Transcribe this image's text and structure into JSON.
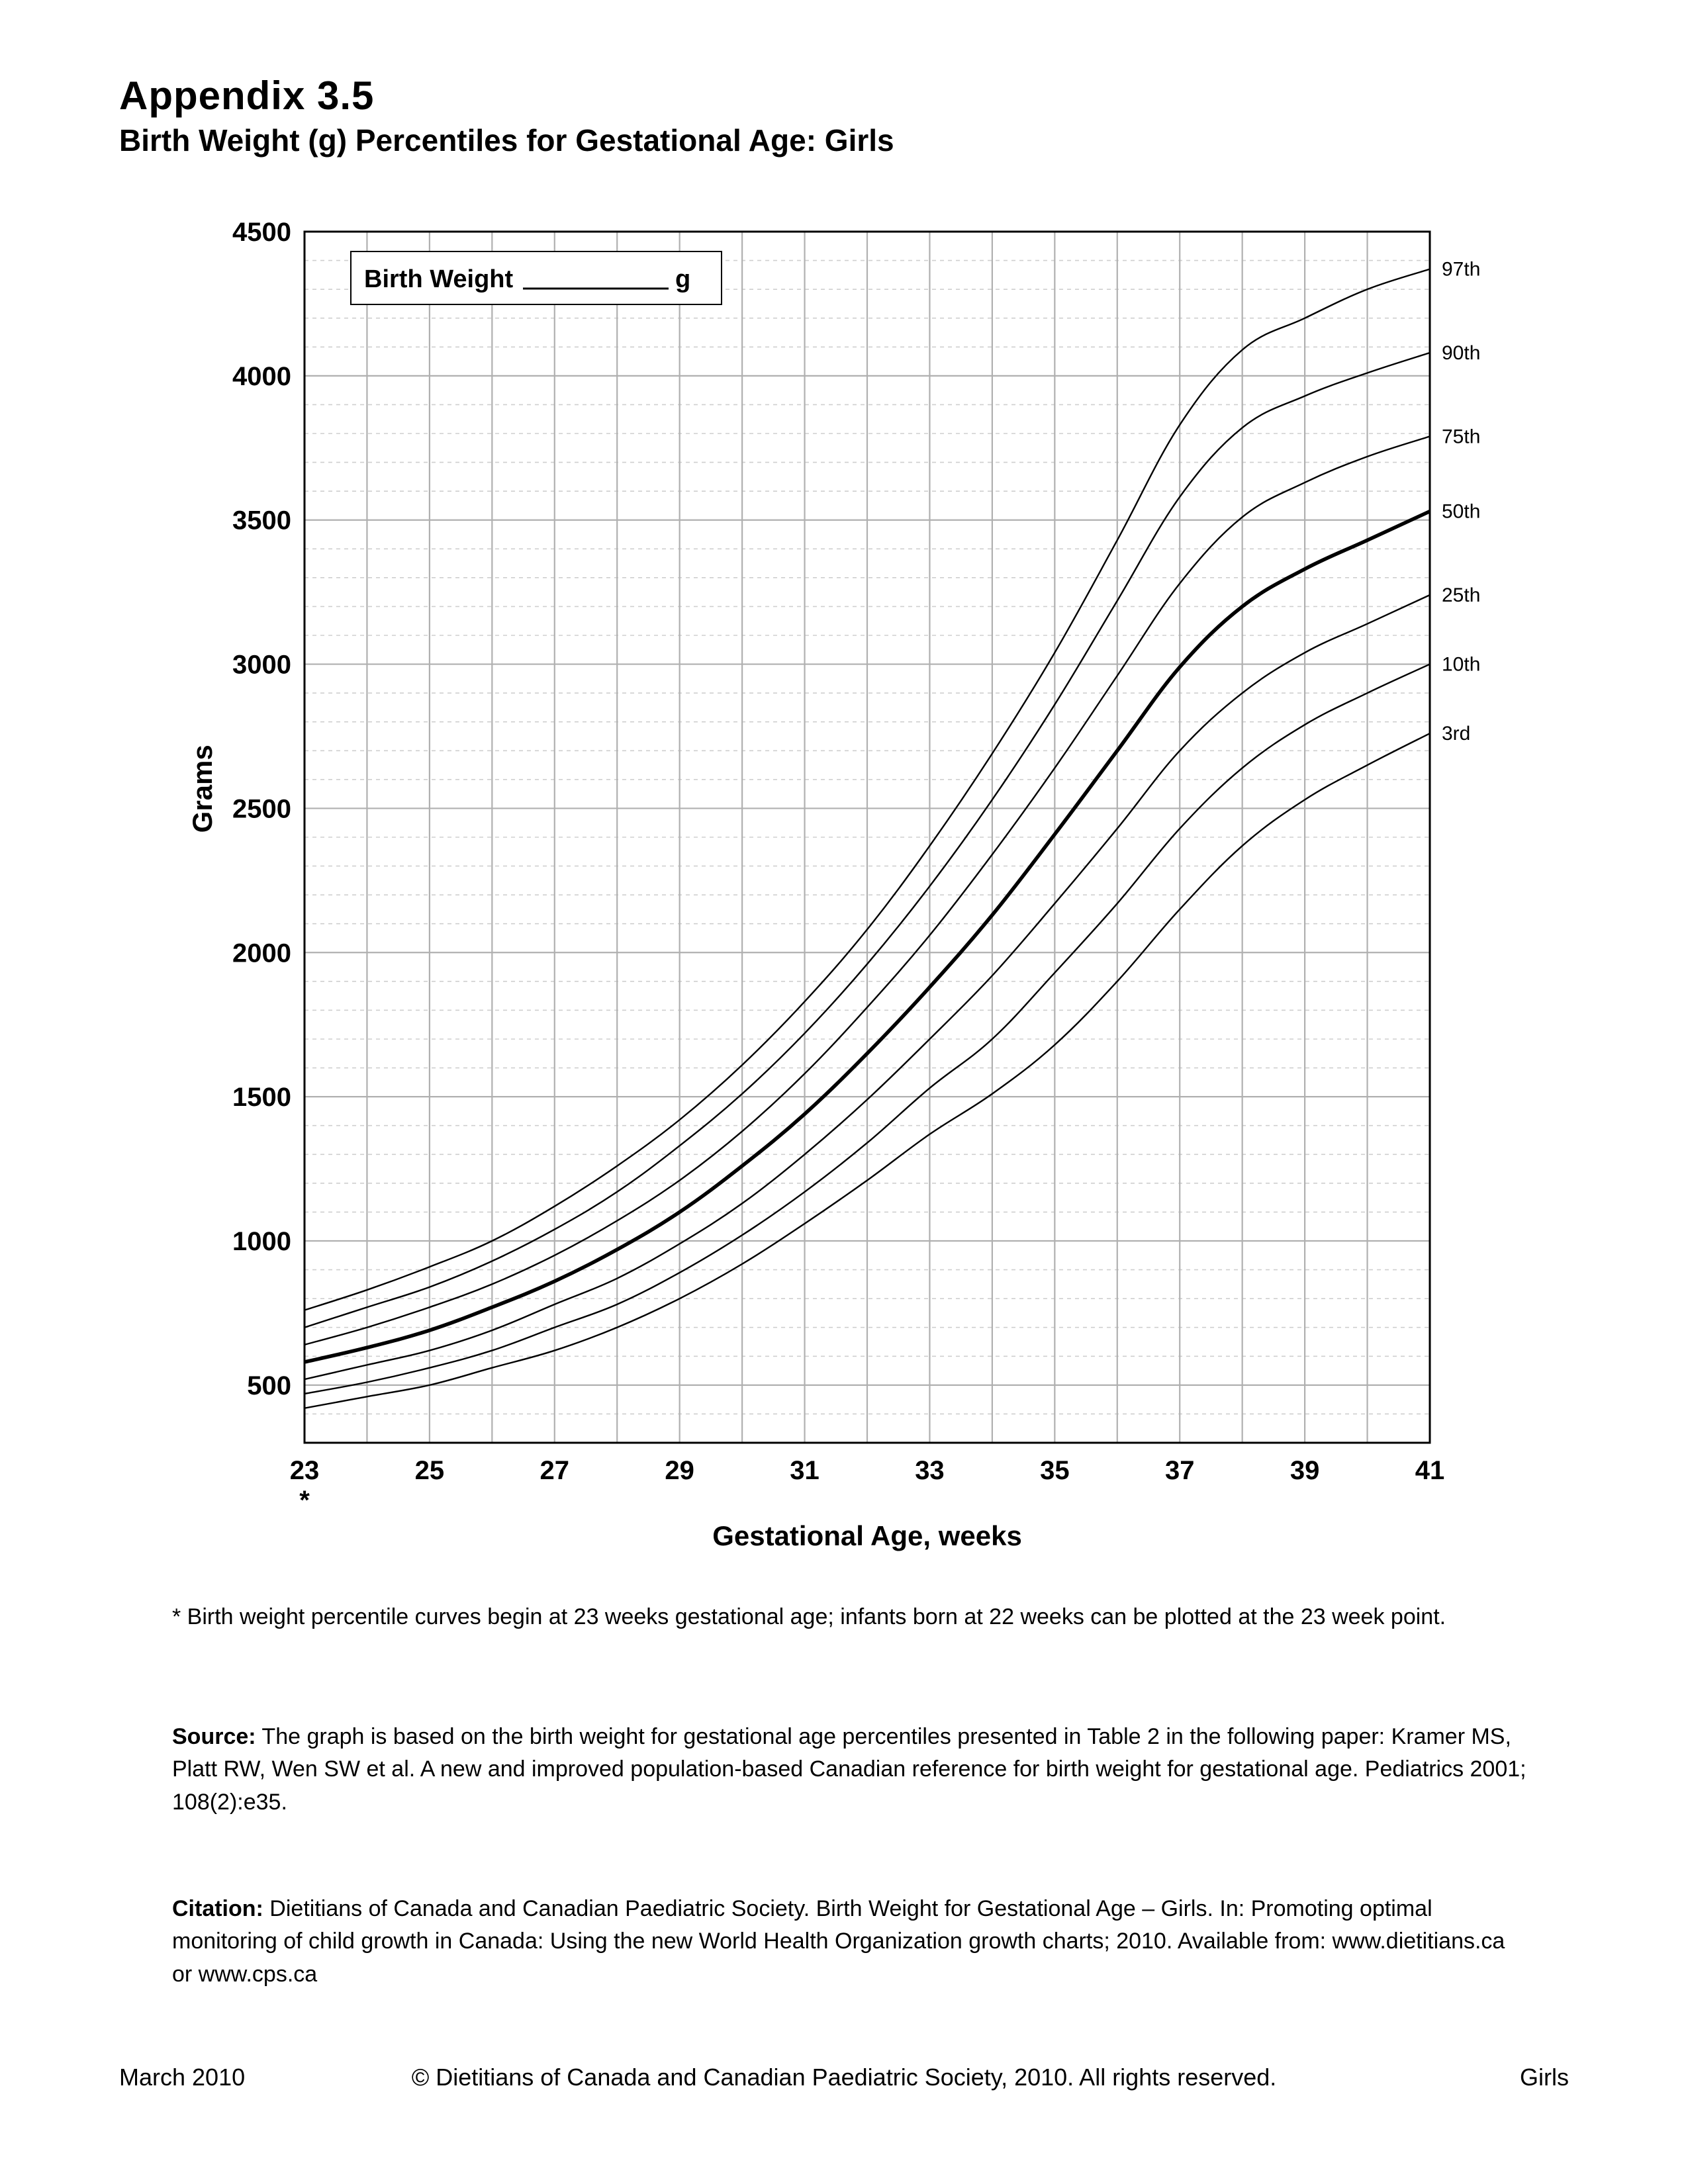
{
  "header": {
    "title": "Appendix 3.5",
    "subtitle": "Birth Weight (g) Percentiles for Gestational Age: Girls"
  },
  "chart": {
    "type": "line",
    "inset_label_prefix": "Birth Weight",
    "inset_label_suffix": "g",
    "xlabel": "Gestational Age, weeks",
    "ylabel": "Grams",
    "xlim": [
      23,
      41
    ],
    "ylim": [
      300,
      4500
    ],
    "xticks": [
      23,
      25,
      27,
      29,
      31,
      33,
      35,
      37,
      39,
      41
    ],
    "xminor_step": 1,
    "yticks_major": [
      500,
      1000,
      1500,
      2000,
      2500,
      3000,
      3500,
      4000,
      4500
    ],
    "yminor_step": 100,
    "star_at_x": 23,
    "label_fontsize_pt": 40,
    "tick_fontsize_pt": 40,
    "series_label_fontsize_pt": 30,
    "background_color": "#ffffff",
    "plot_border_color": "#000000",
    "plot_border_width": 3,
    "major_grid_color": "#b0b0b0",
    "major_grid_width": 2.2,
    "minor_grid_color": "#cfcfcf",
    "minor_grid_width": 1.6,
    "minor_grid_dash": "6,6",
    "line_color": "#000000",
    "line_width": 2.4,
    "line_width_bold": 5.5,
    "series": [
      {
        "label": "97th",
        "bold": false,
        "points": [
          [
            23,
            760
          ],
          [
            24,
            830
          ],
          [
            25,
            910
          ],
          [
            26,
            1000
          ],
          [
            27,
            1120
          ],
          [
            28,
            1260
          ],
          [
            29,
            1420
          ],
          [
            30,
            1610
          ],
          [
            31,
            1830
          ],
          [
            32,
            2080
          ],
          [
            33,
            2370
          ],
          [
            34,
            2690
          ],
          [
            35,
            3040
          ],
          [
            36,
            3430
          ],
          [
            37,
            3830
          ],
          [
            38,
            4090
          ],
          [
            39,
            4200
          ],
          [
            40,
            4300
          ],
          [
            41,
            4370
          ]
        ]
      },
      {
        "label": "90th",
        "bold": false,
        "points": [
          [
            23,
            700
          ],
          [
            24,
            770
          ],
          [
            25,
            840
          ],
          [
            26,
            930
          ],
          [
            27,
            1040
          ],
          [
            28,
            1170
          ],
          [
            29,
            1330
          ],
          [
            30,
            1510
          ],
          [
            31,
            1720
          ],
          [
            32,
            1960
          ],
          [
            33,
            2230
          ],
          [
            34,
            2530
          ],
          [
            35,
            2860
          ],
          [
            36,
            3220
          ],
          [
            37,
            3580
          ],
          [
            38,
            3820
          ],
          [
            39,
            3930
          ],
          [
            40,
            4010
          ],
          [
            41,
            4080
          ]
        ]
      },
      {
        "label": "75th",
        "bold": false,
        "points": [
          [
            23,
            640
          ],
          [
            24,
            700
          ],
          [
            25,
            770
          ],
          [
            26,
            850
          ],
          [
            27,
            950
          ],
          [
            28,
            1070
          ],
          [
            29,
            1210
          ],
          [
            30,
            1380
          ],
          [
            31,
            1580
          ],
          [
            32,
            1810
          ],
          [
            33,
            2060
          ],
          [
            34,
            2340
          ],
          [
            35,
            2640
          ],
          [
            36,
            2960
          ],
          [
            37,
            3280
          ],
          [
            38,
            3510
          ],
          [
            39,
            3630
          ],
          [
            40,
            3720
          ],
          [
            41,
            3790
          ]
        ]
      },
      {
        "label": "50th",
        "bold": true,
        "points": [
          [
            23,
            580
          ],
          [
            24,
            630
          ],
          [
            25,
            690
          ],
          [
            26,
            770
          ],
          [
            27,
            860
          ],
          [
            28,
            970
          ],
          [
            29,
            1100
          ],
          [
            30,
            1260
          ],
          [
            31,
            1440
          ],
          [
            32,
            1650
          ],
          [
            33,
            1880
          ],
          [
            34,
            2130
          ],
          [
            35,
            2410
          ],
          [
            36,
            2700
          ],
          [
            37,
            2990
          ],
          [
            38,
            3200
          ],
          [
            39,
            3330
          ],
          [
            40,
            3430
          ],
          [
            41,
            3530
          ]
        ]
      },
      {
        "label": "25th",
        "bold": false,
        "points": [
          [
            23,
            520
          ],
          [
            24,
            570
          ],
          [
            25,
            620
          ],
          [
            26,
            690
          ],
          [
            27,
            780
          ],
          [
            28,
            870
          ],
          [
            29,
            990
          ],
          [
            30,
            1130
          ],
          [
            31,
            1300
          ],
          [
            32,
            1490
          ],
          [
            33,
            1700
          ],
          [
            34,
            1920
          ],
          [
            35,
            2170
          ],
          [
            36,
            2430
          ],
          [
            37,
            2700
          ],
          [
            38,
            2900
          ],
          [
            39,
            3040
          ],
          [
            40,
            3140
          ],
          [
            41,
            3240
          ]
        ]
      },
      {
        "label": "10th",
        "bold": false,
        "points": [
          [
            23,
            470
          ],
          [
            24,
            510
          ],
          [
            25,
            560
          ],
          [
            26,
            620
          ],
          [
            27,
            700
          ],
          [
            28,
            780
          ],
          [
            29,
            890
          ],
          [
            30,
            1020
          ],
          [
            31,
            1170
          ],
          [
            32,
            1340
          ],
          [
            33,
            1530
          ],
          [
            34,
            1700
          ],
          [
            35,
            1930
          ],
          [
            36,
            2170
          ],
          [
            37,
            2430
          ],
          [
            38,
            2640
          ],
          [
            39,
            2790
          ],
          [
            40,
            2900
          ],
          [
            41,
            3000
          ]
        ]
      },
      {
        "label": "3rd",
        "bold": false,
        "points": [
          [
            23,
            420
          ],
          [
            24,
            460
          ],
          [
            25,
            500
          ],
          [
            26,
            560
          ],
          [
            27,
            620
          ],
          [
            28,
            700
          ],
          [
            29,
            800
          ],
          [
            30,
            920
          ],
          [
            31,
            1060
          ],
          [
            32,
            1210
          ],
          [
            33,
            1370
          ],
          [
            34,
            1510
          ],
          [
            35,
            1680
          ],
          [
            36,
            1900
          ],
          [
            37,
            2150
          ],
          [
            38,
            2370
          ],
          [
            39,
            2530
          ],
          [
            40,
            2650
          ],
          [
            41,
            2760
          ]
        ]
      }
    ]
  },
  "note_text": "* Birth weight percentile curves begin at 23 weeks gestational age; infants born at 22 weeks can be plotted at the 23 week point.",
  "source_label": "Source:",
  "source_text": " The graph is based on the birth weight for gestational age percentiles presented in Table 2 in the following paper:  Kramer MS, Platt RW, Wen SW et al. A new and improved population-based Canadian reference for birth weight for gestational age. Pediatrics 2001; 108(2):e35.",
  "citation_label": "Citation:",
  "citation_text": " Dietitians of Canada and Canadian Paediatric Society. Birth Weight for Gestational Age – Girls. In: Promoting optimal monitoring of child growth in Canada: Using the new World Health Organization growth charts; 2010. Available from: www.dietitians.ca or www.cps.ca",
  "footer": {
    "left": "March 2010",
    "center": "© Dietitians of Canada and Canadian Paediatric Society, 2010. All rights reserved.",
    "right": "Girls"
  }
}
